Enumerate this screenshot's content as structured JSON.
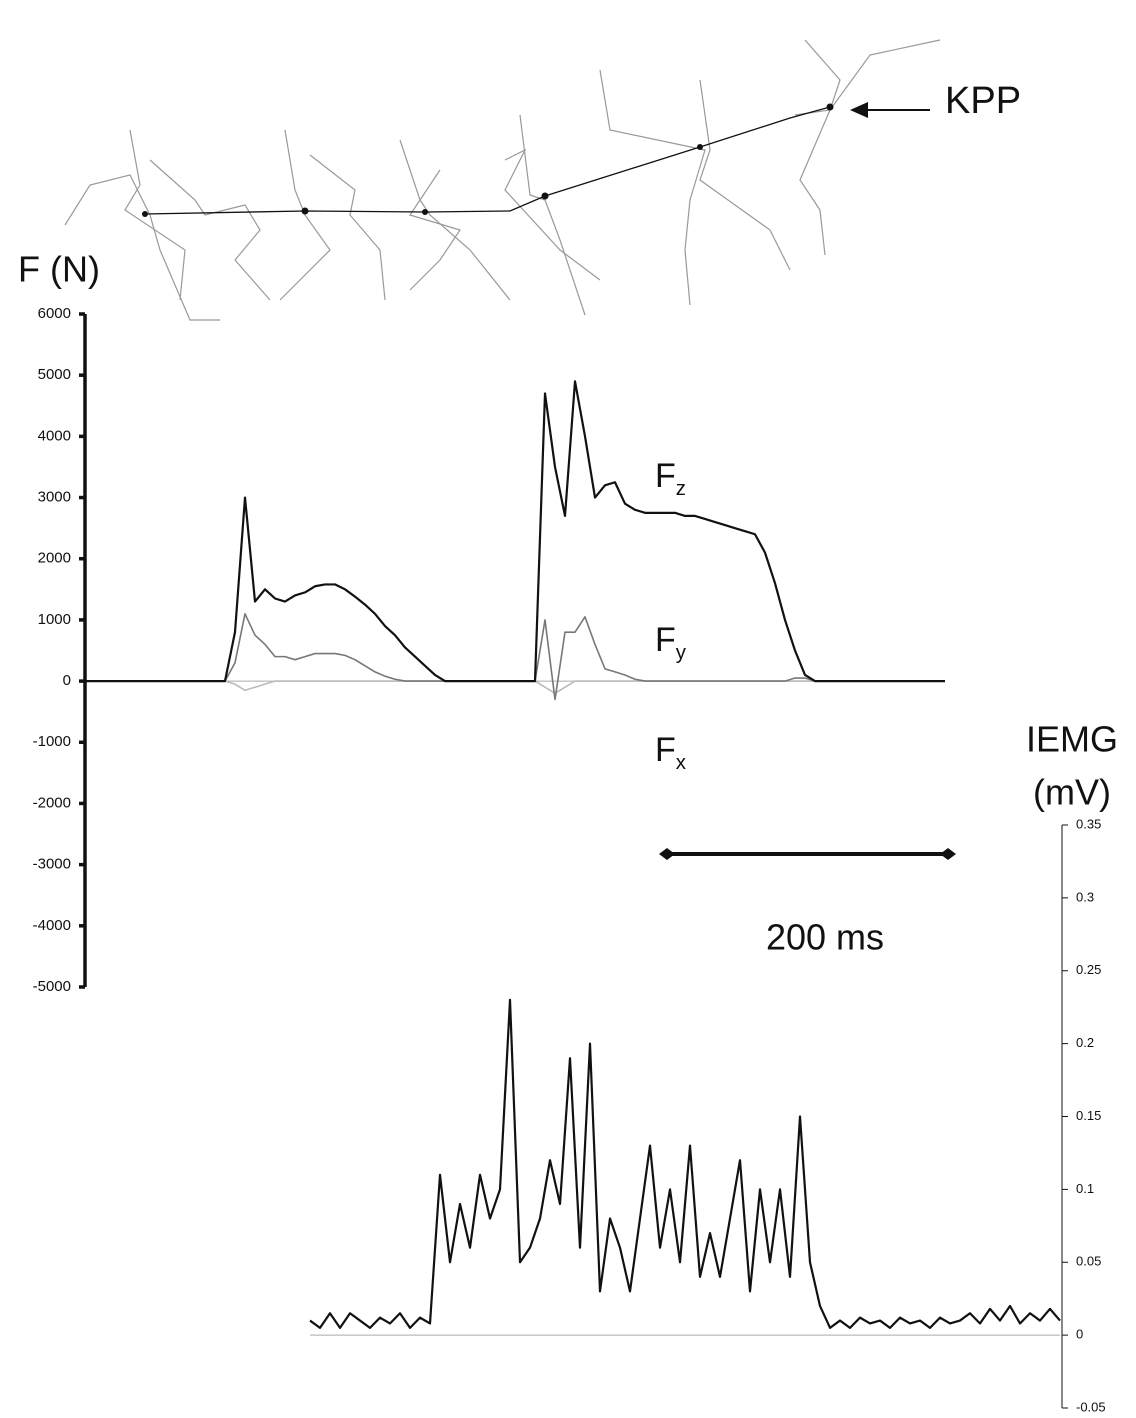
{
  "figure_labels": {
    "kpp": "KPP",
    "scale_bar": "200 ms"
  },
  "chart_data": [
    {
      "type": "line",
      "ylabel": "F (N)",
      "ylim": [
        -5000,
        6000
      ],
      "yticks": [
        -5000,
        -4000,
        -3000,
        -2000,
        -1000,
        0,
        1000,
        2000,
        3000,
        4000,
        5000,
        6000
      ],
      "series": [
        {
          "name": "Fz",
          "color": "#111111",
          "values": [
            0,
            0,
            0,
            0,
            0,
            0,
            0,
            0,
            0,
            0,
            0,
            0,
            0,
            0,
            0,
            800,
            3000,
            1300,
            1500,
            1350,
            1300,
            1400,
            1450,
            1550,
            1580,
            1580,
            1500,
            1380,
            1250,
            1100,
            900,
            750,
            550,
            400,
            250,
            100,
            0,
            0,
            0,
            0,
            0,
            0,
            0,
            0,
            0,
            0,
            4700,
            3500,
            2700,
            4900,
            4000,
            3000,
            3200,
            3250,
            2900,
            2800,
            2750,
            2750,
            2750,
            2750,
            2700,
            2700,
            2650,
            2600,
            2550,
            2500,
            2450,
            2400,
            2100,
            1600,
            1000,
            500,
            100,
            0,
            0,
            0,
            0,
            0,
            0,
            0,
            0,
            0,
            0,
            0,
            0,
            0,
            0
          ]
        },
        {
          "name": "Fy",
          "color": "#777777",
          "values": [
            0,
            0,
            0,
            0,
            0,
            0,
            0,
            0,
            0,
            0,
            0,
            0,
            0,
            0,
            0,
            300,
            1100,
            750,
            600,
            400,
            400,
            350,
            400,
            450,
            450,
            450,
            420,
            350,
            250,
            150,
            80,
            30,
            0,
            0,
            0,
            0,
            0,
            0,
            0,
            0,
            0,
            0,
            0,
            0,
            0,
            0,
            1000,
            -300,
            800,
            800,
            1050,
            600,
            200,
            150,
            100,
            30,
            0,
            0,
            0,
            0,
            0,
            0,
            0,
            0,
            0,
            0,
            0,
            0,
            0,
            0,
            0,
            50,
            50,
            0,
            0,
            0,
            0,
            0,
            0,
            0,
            0,
            0,
            0,
            0,
            0,
            0,
            0
          ]
        },
        {
          "name": "Fx",
          "color": "#bbbbbb",
          "values": [
            0,
            0,
            0,
            0,
            0,
            0,
            0,
            0,
            0,
            0,
            0,
            0,
            0,
            0,
            0,
            -50,
            -150,
            -100,
            -50,
            0,
            0,
            0,
            0,
            0,
            0,
            0,
            0,
            0,
            0,
            0,
            0,
            0,
            0,
            0,
            0,
            0,
            0,
            0,
            0,
            0,
            0,
            0,
            0,
            0,
            0,
            0,
            -100,
            -200,
            -100,
            0,
            0,
            0,
            0,
            0,
            0,
            0,
            0,
            0,
            0,
            0,
            0,
            0,
            0,
            0,
            0,
            0,
            0,
            0,
            0,
            0,
            0,
            0,
            0,
            0,
            0,
            0,
            0,
            0,
            0,
            0,
            0,
            0,
            0,
            0,
            0,
            0,
            0
          ]
        }
      ]
    },
    {
      "type": "line",
      "ylabel": "IEMG",
      "yunit": "(mV)",
      "ylim": [
        -0.05,
        0.35
      ],
      "yticks": [
        -0.05,
        0,
        0.05,
        0.1,
        0.15,
        0.2,
        0.25,
        0.3,
        0.35
      ],
      "series": [
        {
          "name": "IEMG",
          "color": "#111111",
          "values": [
            0.01,
            0.005,
            0.015,
            0.005,
            0.015,
            0.01,
            0.005,
            0.012,
            0.008,
            0.015,
            0.005,
            0.012,
            0.008,
            0.11,
            0.05,
            0.09,
            0.06,
            0.11,
            0.08,
            0.1,
            0.23,
            0.05,
            0.06,
            0.08,
            0.12,
            0.09,
            0.19,
            0.06,
            0.2,
            0.03,
            0.08,
            0.06,
            0.03,
            0.08,
            0.13,
            0.06,
            0.1,
            0.05,
            0.13,
            0.04,
            0.07,
            0.04,
            0.08,
            0.12,
            0.03,
            0.1,
            0.05,
            0.1,
            0.04,
            0.15,
            0.05,
            0.02,
            0.005,
            0.01,
            0.005,
            0.012,
            0.008,
            0.01,
            0.005,
            0.012,
            0.008,
            0.01,
            0.005,
            0.012,
            0.008,
            0.01,
            0.015,
            0.008,
            0.018,
            0.01,
            0.02,
            0.008,
            0.015,
            0.01,
            0.018,
            0.01
          ]
        }
      ]
    }
  ]
}
